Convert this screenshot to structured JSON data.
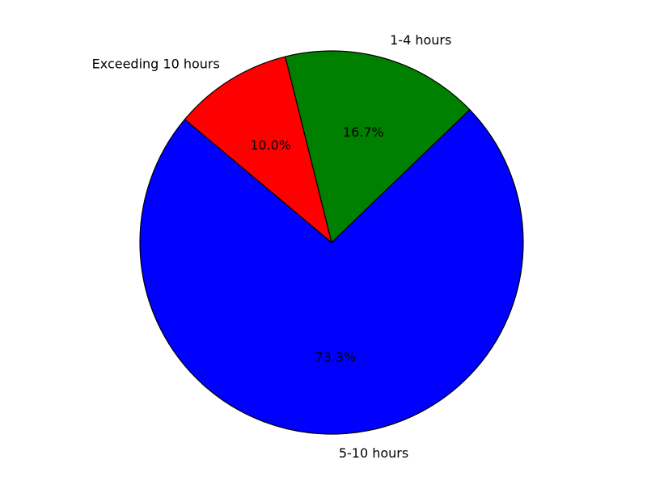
{
  "chart_data": {
    "type": "pie",
    "title": "",
    "categories": [
      "5-10 hours",
      "1-4 hours",
      "Exceeding 10 hours"
    ],
    "values": [
      73.3,
      16.7,
      10.0
    ],
    "value_labels": [
      "73.3%",
      "16.7%",
      "10.0%"
    ],
    "colors": [
      "#0000ff",
      "#008000",
      "#ff0000"
    ],
    "edge_color": "#000000",
    "start_angle_deg": 140,
    "direction": "counterclockwise",
    "legend": "none"
  }
}
